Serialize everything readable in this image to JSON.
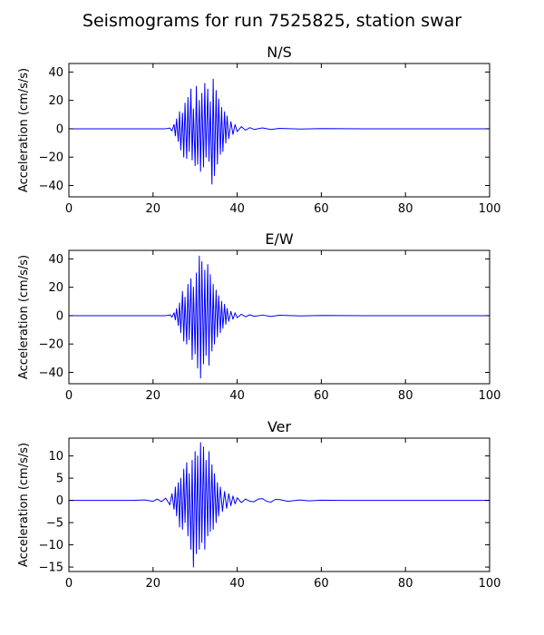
{
  "figure": {
    "title": "Seismograms for run 7525825, station swar"
  },
  "chart_data": [
    {
      "type": "line",
      "title": "N/S",
      "xlabel": "",
      "ylabel": "Acceleration (cm/s/s)",
      "xlim": [
        0,
        100
      ],
      "ylim": [
        -48,
        46
      ],
      "xticks": [
        0,
        20,
        40,
        60,
        80,
        100
      ],
      "yticks": [
        -40,
        -20,
        0,
        20,
        40
      ],
      "grid": false,
      "series": [
        {
          "color": "#0000ff",
          "x": [
            0,
            5,
            10,
            15,
            20,
            23,
            24,
            24.5,
            25,
            25.3,
            25.6,
            26,
            26.3,
            26.6,
            27,
            27.3,
            27.6,
            28,
            28.3,
            28.6,
            29,
            29.3,
            29.6,
            30,
            30.3,
            30.6,
            31,
            31.3,
            31.6,
            32,
            32.3,
            32.6,
            33,
            33.3,
            33.6,
            34,
            34.3,
            34.6,
            35,
            35.3,
            35.6,
            36,
            36.3,
            36.6,
            37,
            37.3,
            37.6,
            38,
            38.5,
            39,
            39.5,
            40,
            41,
            42,
            43,
            44,
            46,
            48,
            50,
            55,
            60,
            70,
            80,
            90,
            100
          ],
          "y": [
            0,
            0,
            0,
            0,
            0,
            0,
            0.5,
            -1.5,
            3,
            -5,
            7,
            -9,
            12,
            -15,
            11,
            -20,
            18,
            -21,
            22,
            -16,
            28,
            -22,
            14,
            -26,
            30,
            -25,
            20,
            -30,
            25,
            -27,
            32,
            -20,
            28,
            -23,
            19,
            -39,
            35,
            -33,
            27,
            -25,
            21,
            -18,
            15,
            -16,
            12,
            -10,
            9,
            -7,
            5,
            -4,
            3,
            -2,
            1.5,
            -1,
            0.8,
            -0.5,
            0.6,
            -0.5,
            0.3,
            -0.2,
            0.1,
            0,
            0,
            0,
            0
          ]
        }
      ]
    },
    {
      "type": "line",
      "title": "E/W",
      "xlabel": "",
      "ylabel": "Acceleration (cm/s/s)",
      "xlim": [
        0,
        100
      ],
      "ylim": [
        -48,
        46
      ],
      "xticks": [
        0,
        20,
        40,
        60,
        80,
        100
      ],
      "yticks": [
        -40,
        -20,
        0,
        20,
        40
      ],
      "grid": false,
      "series": [
        {
          "color": "#0000ff",
          "x": [
            0,
            5,
            10,
            15,
            20,
            23,
            24,
            24.5,
            25,
            25.3,
            25.6,
            26,
            26.3,
            26.6,
            27,
            27.3,
            27.6,
            28,
            28.3,
            28.6,
            29,
            29.3,
            29.6,
            30,
            30.3,
            30.6,
            31,
            31.3,
            31.6,
            32,
            32.3,
            32.6,
            33,
            33.3,
            33.6,
            34,
            34.3,
            34.6,
            35,
            35.3,
            35.6,
            36,
            36.3,
            36.6,
            37,
            37.3,
            37.6,
            38,
            38.5,
            39,
            39.5,
            40,
            41,
            42,
            43,
            44,
            46,
            48,
            50,
            55,
            60,
            70,
            80,
            90,
            100
          ],
          "y": [
            0,
            0,
            0,
            0,
            0,
            0,
            0.5,
            -1,
            2,
            -3,
            5,
            -7,
            9,
            -12,
            17,
            -18,
            13,
            -20,
            22,
            -17,
            26,
            -31,
            20,
            -27,
            30,
            -37,
            42,
            -44,
            38,
            -34,
            32,
            -28,
            36,
            -35,
            29,
            -25,
            22,
            -20,
            18,
            -15,
            14,
            -12,
            10,
            -9,
            8,
            -6,
            5,
            -4,
            3,
            -2.5,
            2,
            -1.5,
            1,
            -0.8,
            0.6,
            -0.5,
            0.4,
            -0.6,
            0.3,
            -0.2,
            0.1,
            0,
            0,
            0,
            0
          ]
        }
      ]
    },
    {
      "type": "line",
      "title": "Ver",
      "xlabel": "",
      "ylabel": "Acceleration (cm/s/s)",
      "xlim": [
        0,
        100
      ],
      "ylim": [
        -16,
        14
      ],
      "xticks": [
        0,
        20,
        40,
        60,
        80,
        100
      ],
      "yticks": [
        -15,
        -10,
        -5,
        0,
        5,
        10
      ],
      "grid": false,
      "series": [
        {
          "color": "#0000ff",
          "x": [
            0,
            5,
            10,
            15,
            18,
            20,
            21,
            22,
            23,
            24,
            24.5,
            25,
            25.3,
            25.6,
            26,
            26.3,
            26.6,
            27,
            27.3,
            27.6,
            28,
            28.3,
            28.6,
            29,
            29.3,
            29.6,
            30,
            30.3,
            30.6,
            31,
            31.3,
            31.6,
            32,
            32.3,
            32.6,
            33,
            33.3,
            33.6,
            34,
            34.3,
            34.6,
            35,
            35.3,
            35.6,
            36,
            36.5,
            37,
            37.5,
            38,
            38.5,
            39,
            39.5,
            40,
            41,
            42,
            43,
            44,
            45,
            46,
            47,
            48,
            49,
            50,
            52,
            55,
            57,
            60,
            65,
            70,
            80,
            90,
            100
          ],
          "y": [
            0,
            0,
            0,
            0,
            0.1,
            -0.2,
            0.3,
            -0.3,
            0.5,
            -1,
            1.5,
            -2,
            3,
            -3.5,
            4,
            -6,
            5,
            -6.5,
            7,
            -5,
            8.5,
            -8,
            6,
            -11,
            9,
            -15,
            11,
            -12,
            10,
            -11,
            13,
            -9.5,
            12,
            -11,
            9,
            -8,
            11,
            -7,
            8,
            -6.5,
            6,
            -5,
            4,
            -3.5,
            3,
            -2.5,
            2,
            -1.8,
            1.5,
            -1.2,
            1,
            -0.8,
            0.6,
            -0.5,
            0.3,
            -0.2,
            -0.3,
            0.3,
            0.4,
            -0.2,
            -0.4,
            0.2,
            0.2,
            -0.2,
            0.1,
            -0.1,
            0.05,
            0,
            0,
            0,
            0,
            0
          ]
        }
      ]
    }
  ]
}
